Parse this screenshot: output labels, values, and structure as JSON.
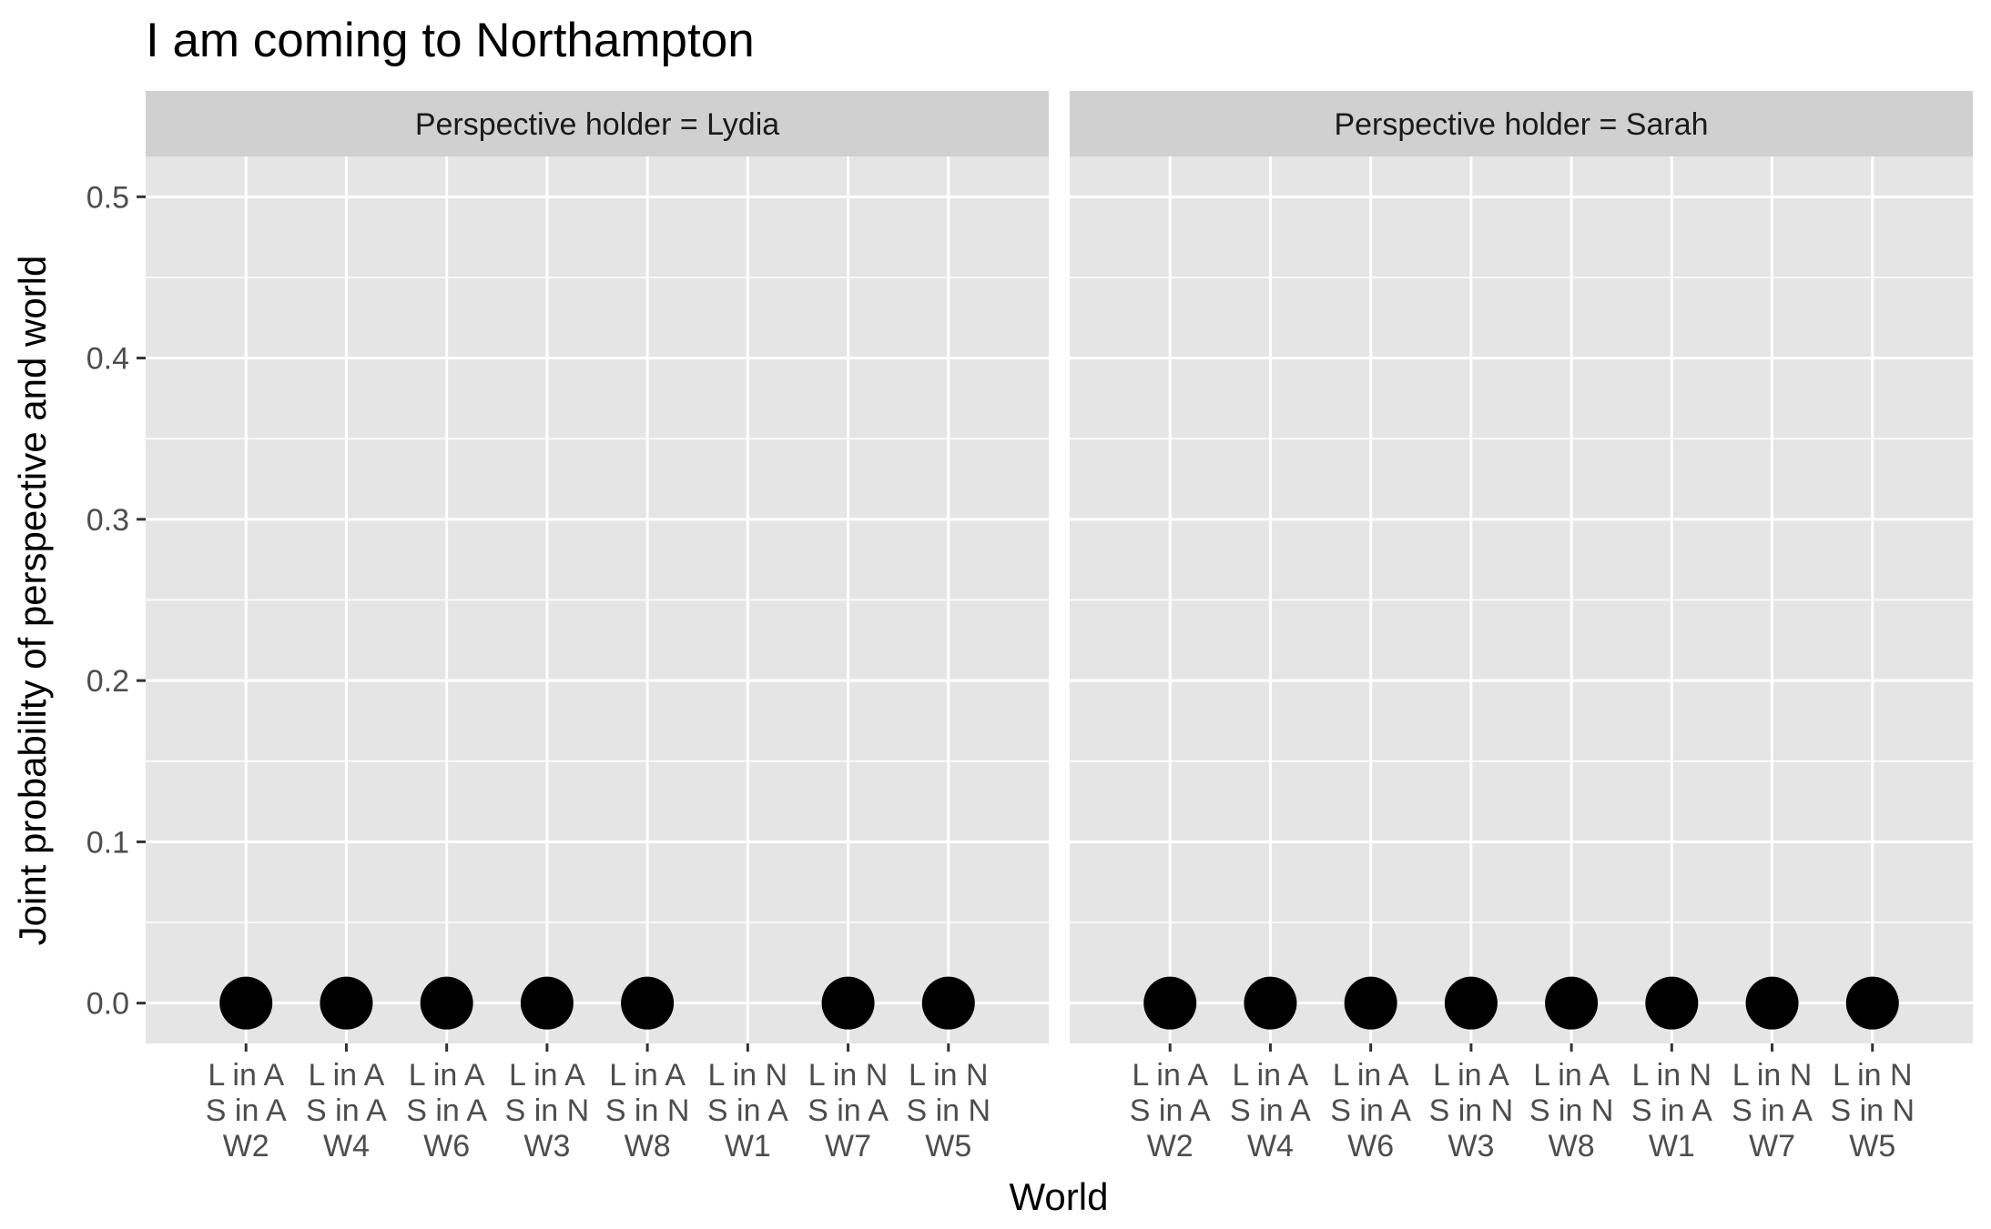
{
  "chart_data": {
    "type": "scatter",
    "title": "I am coming to Northampton",
    "xlabel": "World",
    "ylabel": "Joint probability of perspective and world",
    "ylim": [
      -0.025,
      0.525
    ],
    "y_ticks": [
      "0.0",
      "0.1",
      "0.2",
      "0.3",
      "0.4",
      "0.5"
    ],
    "y_tick_values": [
      0,
      0.1,
      0.2,
      0.3,
      0.4,
      0.5
    ],
    "grid": true,
    "categories": [
      {
        "line1": "L in A",
        "line2": "S in A",
        "line3": "W2"
      },
      {
        "line1": "L in A",
        "line2": "S in A",
        "line3": "W4"
      },
      {
        "line1": "L in A",
        "line2": "S in A",
        "line3": "W6"
      },
      {
        "line1": "L in A",
        "line2": "S in N",
        "line3": "W3"
      },
      {
        "line1": "L in A",
        "line2": "S in N",
        "line3": "W8"
      },
      {
        "line1": "L in N",
        "line2": "S in A",
        "line3": "W1"
      },
      {
        "line1": "L in N",
        "line2": "S in A",
        "line3": "W7"
      },
      {
        "line1": "L in N",
        "line2": "S in N",
        "line3": "W5"
      }
    ],
    "panels": [
      {
        "label": "Perspective holder = Lydia",
        "points": [
          {
            "category": 0,
            "y": 0
          },
          {
            "category": 1,
            "y": 0
          },
          {
            "category": 2,
            "y": 0
          },
          {
            "category": 3,
            "y": 0
          },
          {
            "category": 4,
            "y": 0
          },
          {
            "category": 6,
            "y": 0
          },
          {
            "category": 7,
            "y": 0
          }
        ]
      },
      {
        "label": "Perspective holder = Sarah",
        "points": [
          {
            "category": 0,
            "y": 0
          },
          {
            "category": 1,
            "y": 0
          },
          {
            "category": 2,
            "y": 0
          },
          {
            "category": 3,
            "y": 0
          },
          {
            "category": 4,
            "y": 0
          },
          {
            "category": 5,
            "y": 0
          },
          {
            "category": 6,
            "y": 0
          },
          {
            "category": 7,
            "y": 0
          }
        ]
      }
    ],
    "colors": {
      "panel_bg": "#e5e5e5",
      "strip_bg": "#d0d0d0",
      "grid": "#ffffff",
      "point": "#000000",
      "tick": "#333333"
    }
  }
}
